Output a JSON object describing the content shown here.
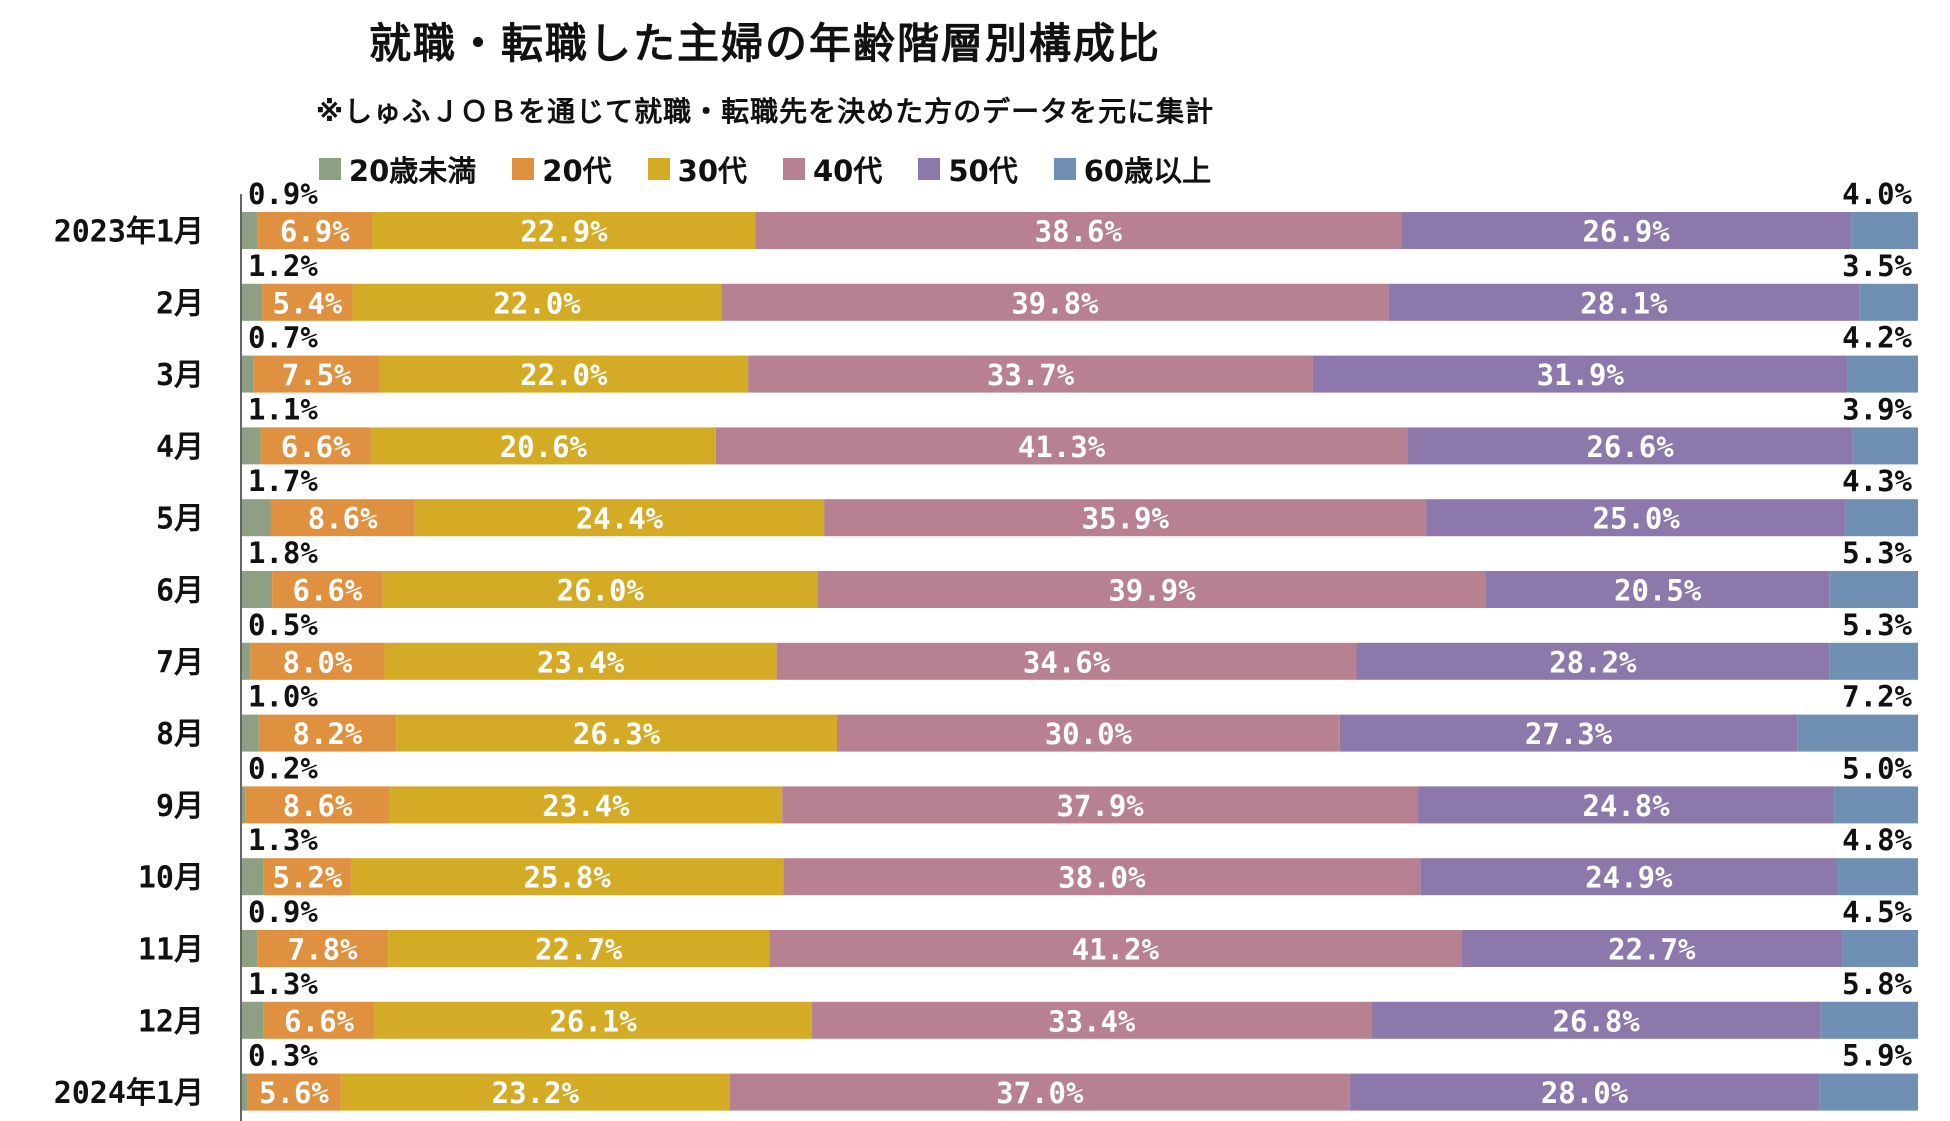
{
  "chart_data": {
    "type": "bar",
    "orientation": "horizontal",
    "stacked": true,
    "title": "就職・転職した主婦の年齢階層別構成比",
    "subtitle": "※しゅふＪＯＢを通じて就職・転職先を決めた方のデータを元に集計",
    "legend_position": "top",
    "unit": "%",
    "categories": [
      "2023年1月",
      "2月",
      "3月",
      "4月",
      "5月",
      "6月",
      "7月",
      "8月",
      "9月",
      "10月",
      "11月",
      "12月",
      "2024年1月"
    ],
    "series": [
      {
        "name": "20歳未満",
        "color": "#8ea083",
        "values": [
          0.9,
          1.2,
          0.7,
          1.1,
          1.7,
          1.8,
          0.5,
          1.0,
          0.2,
          1.3,
          0.9,
          1.3,
          0.3
        ]
      },
      {
        "name": "20代",
        "color": "#e0913f",
        "values": [
          6.9,
          5.4,
          7.5,
          6.6,
          8.6,
          6.6,
          8.0,
          8.2,
          8.6,
          5.2,
          7.8,
          6.6,
          5.6
        ]
      },
      {
        "name": "30代",
        "color": "#d4ab25",
        "values": [
          22.9,
          22.0,
          22.0,
          20.6,
          24.4,
          26.0,
          23.4,
          26.3,
          23.4,
          25.8,
          22.7,
          26.1,
          23.2
        ]
      },
      {
        "name": "40代",
        "color": "#b88192",
        "values": [
          38.6,
          39.8,
          33.7,
          41.3,
          35.9,
          39.9,
          34.6,
          30.0,
          37.9,
          38.0,
          41.2,
          33.4,
          37.0
        ]
      },
      {
        "name": "50代",
        "color": "#8d78ab",
        "values": [
          26.9,
          28.1,
          31.9,
          26.6,
          25.0,
          20.5,
          28.2,
          27.3,
          24.8,
          24.9,
          22.7,
          26.8,
          28.0
        ]
      },
      {
        "name": "60歳以上",
        "color": "#6f8fb3",
        "values": [
          4.0,
          3.5,
          4.2,
          3.9,
          4.3,
          5.3,
          5.3,
          7.2,
          5.0,
          4.8,
          4.5,
          5.8,
          5.9
        ]
      }
    ]
  }
}
